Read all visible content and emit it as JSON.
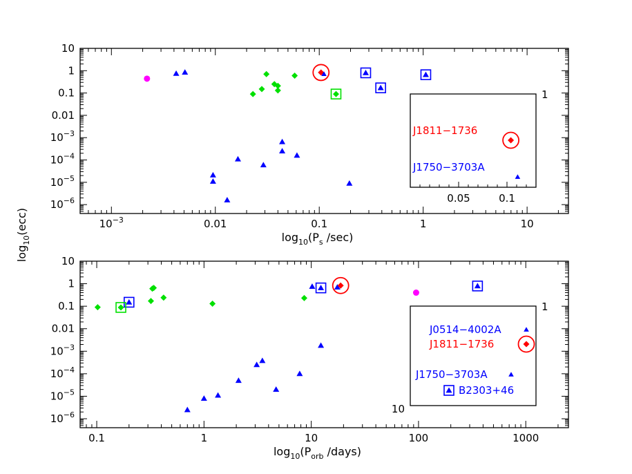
{
  "ylabel_shared": "log10(ecc)",
  "colors": {
    "blue": "#0000ff",
    "green": "#00e000",
    "red": "#ff0000",
    "magenta": "#ff00ff",
    "black": "#000000"
  },
  "chart_data": [
    {
      "type": "scatter",
      "panel": "top",
      "xlabel": {
        "main": "log",
        "sub": "10",
        "open": "(P",
        "sub2": "s",
        "close": " /sec)"
      },
      "ylabel": "log10(ecc)",
      "xscale": "log",
      "yscale": "log",
      "xlim": [
        0.0005,
        25
      ],
      "ylim": [
        4e-07,
        10
      ],
      "xticks": [
        {
          "v": 0.001,
          "label": "10",
          "sup": "−3"
        },
        {
          "v": 0.01,
          "label": "0.01"
        },
        {
          "v": 0.1,
          "label": "0.1"
        },
        {
          "v": 1,
          "label": "1"
        },
        {
          "v": 10,
          "label": "10"
        }
      ],
      "yticks": [
        {
          "v": 10,
          "label": "10"
        },
        {
          "v": 1,
          "label": "1"
        },
        {
          "v": 0.1,
          "label": "0.1"
        },
        {
          "v": 0.01,
          "label": "0.01"
        },
        {
          "v": 0.001,
          "label": "10",
          "sup": "−3"
        },
        {
          "v": 0.0001,
          "label": "10",
          "sup": "−4"
        },
        {
          "v": 1e-05,
          "label": "10",
          "sup": "−5"
        },
        {
          "v": 1e-06,
          "label": "10",
          "sup": "−6"
        }
      ],
      "series": [
        {
          "name": "blue-triangles",
          "marker": "triangle",
          "color": "#0000ff",
          "points": [
            [
              0.0042,
              0.75
            ],
            [
              0.0051,
              0.85
            ],
            [
              0.0095,
              2.1e-05
            ],
            [
              0.0095,
              1.1e-05
            ],
            [
              0.013,
              1.6e-06
            ],
            [
              0.0165,
              0.00011
            ],
            [
              0.029,
              6e-05
            ],
            [
              0.044,
              0.00065
            ],
            [
              0.044,
              0.00025
            ],
            [
              0.061,
              0.00016
            ],
            [
              0.195,
              9e-06
            ]
          ]
        },
        {
          "name": "green-diamonds",
          "marker": "diamond",
          "color": "#00e000",
          "points": [
            [
              0.023,
              0.09
            ],
            [
              0.028,
              0.15
            ],
            [
              0.031,
              0.7
            ],
            [
              0.037,
              0.25
            ],
            [
              0.04,
              0.21
            ],
            [
              0.04,
              0.13
            ],
            [
              0.058,
              0.6
            ]
          ]
        },
        {
          "name": "magenta-circles",
          "marker": "circle",
          "color": "#ff00ff",
          "points": [
            [
              0.0022,
              0.44
            ]
          ]
        },
        {
          "name": "blue-boxed-triangles",
          "marker": "boxed-triangle",
          "color": "#0000ff",
          "points": [
            [
              0.28,
              0.8
            ],
            [
              0.39,
              0.17
            ],
            [
              1.06,
              0.66
            ]
          ]
        },
        {
          "name": "green-boxed-diamonds",
          "marker": "boxed-diamond",
          "color": "#00e000",
          "points": [
            [
              0.145,
              0.09
            ]
          ]
        },
        {
          "name": "red-circled-diamond",
          "marker": "circled-diamond",
          "color": "#ff0000",
          "points": [
            [
              0.104,
              0.83
            ]
          ]
        },
        {
          "name": "small-blue-triangle",
          "marker": "triangle-small",
          "color": "#0000ff",
          "points": [
            [
              0.111,
              0.71
            ]
          ]
        }
      ],
      "inset": {
        "xscale": "linear",
        "xlim": [
          0.0,
          0.13
        ],
        "xticks": [
          {
            "v": 0.05,
            "label": "0.05"
          },
          {
            "v": 0.1,
            "label": "0.1"
          }
        ],
        "right_label": "1",
        "labels": [
          {
            "text": "J1811−1736",
            "color": "#ff0000",
            "anchor": "J1811"
          },
          {
            "text": "J1750−3703A",
            "color": "#0000ff",
            "anchor": "J1750"
          }
        ],
        "points": [
          {
            "name": "J1811",
            "x": 0.104,
            "marker": "circled-diamond",
            "color": "#ff0000"
          },
          {
            "name": "J1750",
            "x": 0.111,
            "marker": "triangle-small",
            "color": "#0000ff"
          }
        ]
      }
    },
    {
      "type": "scatter",
      "panel": "bottom",
      "xlabel": {
        "main": "log",
        "sub": "10",
        "open": "(P",
        "sub2": "orb",
        "close": " /days)"
      },
      "ylabel": "log10(ecc)",
      "xscale": "log",
      "yscale": "log",
      "xlim": [
        0.07,
        2500
      ],
      "ylim": [
        4e-07,
        10
      ],
      "xticks": [
        {
          "v": 0.1,
          "label": "0.1"
        },
        {
          "v": 1,
          "label": "1"
        },
        {
          "v": 10,
          "label": "10"
        },
        {
          "v": 100,
          "label": "100"
        },
        {
          "v": 1000,
          "label": "1000"
        }
      ],
      "yticks": [
        {
          "v": 10,
          "label": "10"
        },
        {
          "v": 1,
          "label": "1"
        },
        {
          "v": 0.1,
          "label": "0.1"
        },
        {
          "v": 0.01,
          "label": "0.01"
        },
        {
          "v": 0.001,
          "label": "10",
          "sup": "−3"
        },
        {
          "v": 0.0001,
          "label": "10",
          "sup": "−4"
        },
        {
          "v": 1e-05,
          "label": "10",
          "sup": "−5"
        },
        {
          "v": 1e-06,
          "label": "10",
          "sup": "−6"
        }
      ],
      "series": [
        {
          "name": "blue-triangles",
          "marker": "triangle",
          "color": "#0000ff",
          "points": [
            [
              0.7,
              2.5e-06
            ],
            [
              1.0,
              8e-06
            ],
            [
              1.35,
              1.1e-05
            ],
            [
              2.1,
              5e-05
            ],
            [
              3.1,
              0.00025
            ],
            [
              3.5,
              0.00038
            ],
            [
              4.7,
              2e-05
            ],
            [
              7.8,
              0.0001
            ],
            [
              10.2,
              0.75
            ],
            [
              12.3,
              0.0018
            ],
            [
              17.5,
              0.7
            ]
          ]
        },
        {
          "name": "green-diamonds",
          "marker": "diamond",
          "color": "#00e000",
          "points": [
            [
              0.102,
              0.09
            ],
            [
              0.32,
              0.17
            ],
            [
              0.33,
              0.6
            ],
            [
              0.34,
              0.65
            ],
            [
              0.42,
              0.24
            ],
            [
              1.2,
              0.13
            ],
            [
              8.6,
              0.23
            ]
          ]
        },
        {
          "name": "magenta-circles",
          "marker": "circle",
          "color": "#ff00ff",
          "points": [
            [
              95,
              0.4
            ]
          ]
        },
        {
          "name": "blue-boxed-triangles",
          "marker": "boxed-triangle",
          "color": "#0000ff",
          "points": [
            [
              0.2,
              0.15
            ],
            [
              12.3,
              0.65
            ],
            [
              355,
              0.79
            ]
          ]
        },
        {
          "name": "green-boxed-diamonds",
          "marker": "boxed-diamond",
          "color": "#00e000",
          "points": [
            [
              0.168,
              0.088
            ]
          ]
        },
        {
          "name": "red-circled-diamond",
          "marker": "circled-diamond",
          "color": "#ff0000",
          "points": [
            [
              18.8,
              0.83
            ]
          ]
        }
      ],
      "inset": {
        "xscale": "log",
        "xlim": [
          10,
          1200
        ],
        "left_label": "10",
        "right_label": "1",
        "labels": [
          {
            "text": "J0514−4002A",
            "color": "#0000ff",
            "anchor": "J0514"
          },
          {
            "text": "J1811−1736",
            "color": "#ff0000",
            "anchor": "J1811"
          },
          {
            "text": "J1750−3703A",
            "color": "#0000ff",
            "anchor": "J1750"
          },
          {
            "text": "B2303+46",
            "color": "#0000ff",
            "anchor": "B2303"
          }
        ],
        "points": [
          {
            "name": "J0514",
            "marker": "triangle-small",
            "color": "#0000ff"
          },
          {
            "name": "J1811",
            "marker": "circled-diamond",
            "color": "#ff0000"
          },
          {
            "name": "J1750",
            "marker": "triangle-small",
            "color": "#0000ff"
          },
          {
            "name": "B2303",
            "marker": "boxed-triangle",
            "color": "#0000ff"
          }
        ]
      }
    }
  ]
}
